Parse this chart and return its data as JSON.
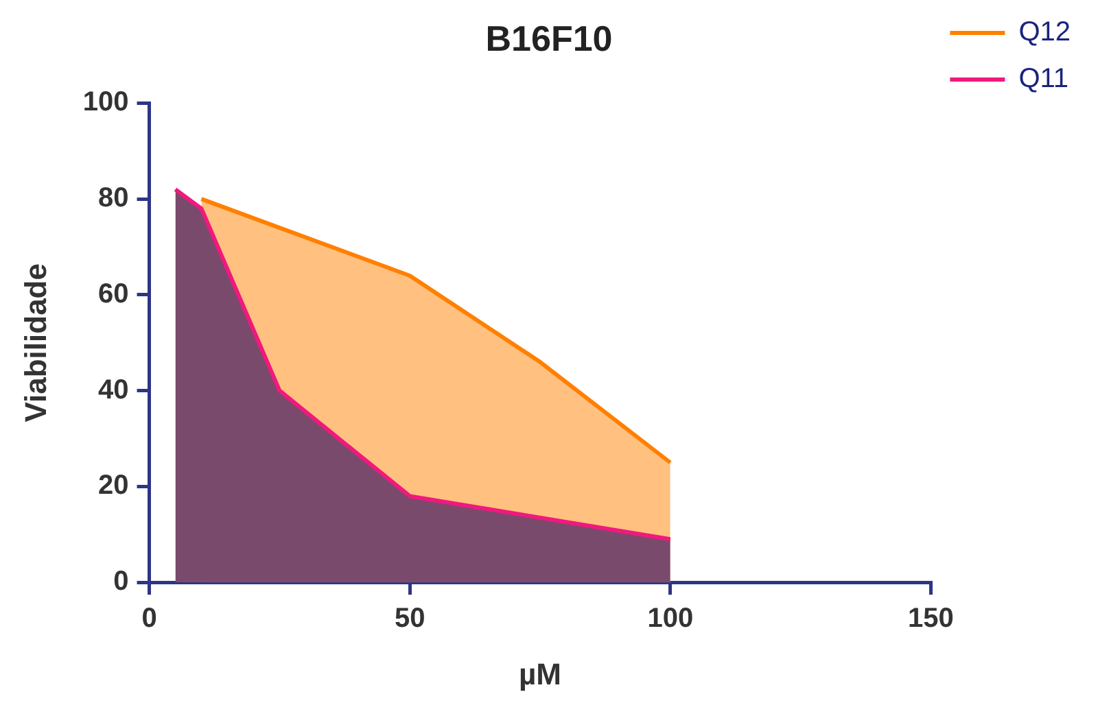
{
  "chart_data": {
    "type": "area",
    "title": "B16F10",
    "xlabel": "µM",
    "ylabel": "Viabilidade",
    "xlim": [
      0,
      150
    ],
    "xticks": [
      0,
      50,
      100,
      150
    ],
    "ylim": [
      0,
      100
    ],
    "yticks": [
      0,
      20,
      40,
      60,
      80,
      100
    ],
    "grid": false,
    "legend": "top right",
    "marker": "none",
    "series": [
      {
        "name": "Q12",
        "color": "#ff8000",
        "x": [
          10,
          25,
          50,
          75,
          100
        ],
        "values": [
          80,
          74,
          64,
          46,
          25
        ]
      },
      {
        "name": "Q11",
        "color": "#f0197d",
        "x": [
          5,
          10,
          25,
          50,
          100
        ],
        "values": [
          82,
          78,
          40,
          18,
          9
        ]
      }
    ]
  }
}
